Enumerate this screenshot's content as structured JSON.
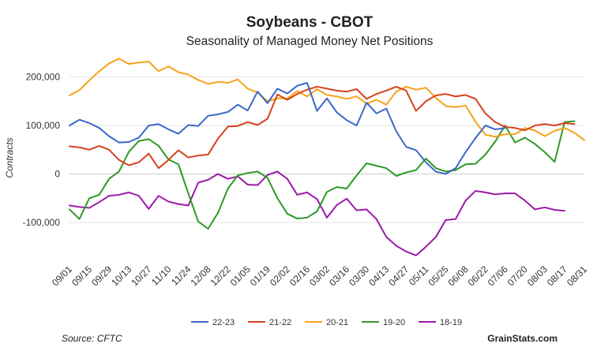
{
  "chart_data": {
    "type": "line",
    "title": "Soybeans - CBOT",
    "subtitle": "Seasonality of Managed Money Net Positions",
    "ylabel": "Contracts",
    "xlabel": "",
    "ylim": [
      -170000,
      245000
    ],
    "yticks": [
      -100000,
      0,
      100000,
      200000
    ],
    "ytick_labels": [
      "-100,000",
      "0",
      "100,000",
      "200,000"
    ],
    "grid": true,
    "legend_position": "bottom",
    "source": "Source: CFTC",
    "brand": "GrainStats.com",
    "x_tick_labels": [
      "09/01",
      "09/15",
      "09/29",
      "10/13",
      "10/27",
      "11/10",
      "11/24",
      "12/08",
      "12/22",
      "01/05",
      "01/19",
      "02/02",
      "02/16",
      "03/02",
      "03/16",
      "03/30",
      "04/13",
      "04/27",
      "05/11",
      "05/25",
      "06/08",
      "06/22",
      "07/06",
      "07/20",
      "08/03",
      "08/17",
      "08/31"
    ],
    "x_points": 53,
    "series": [
      {
        "name": "22-23",
        "color": "#3a68c9",
        "values": [
          100000,
          112000,
          105000,
          95000,
          78000,
          65000,
          66000,
          75000,
          100000,
          103000,
          92000,
          83000,
          101000,
          99000,
          120000,
          123000,
          128000,
          143000,
          131000,
          170000,
          146000,
          176000,
          166000,
          182000,
          188000,
          130000,
          156000,
          127000,
          111000,
          100000,
          147000,
          125000,
          135000,
          88000,
          56000,
          49000,
          24000,
          5000,
          0,
          12000,
          45000,
          74000,
          100000,
          92000,
          95000,
          null,
          null,
          null,
          null,
          null,
          null,
          null,
          null
        ]
      },
      {
        "name": "21-22",
        "color": "#d9411e",
        "values": [
          57000,
          55000,
          50000,
          58000,
          50000,
          29000,
          18000,
          24000,
          42000,
          12000,
          29000,
          49000,
          34000,
          38000,
          40000,
          73000,
          98000,
          99000,
          107000,
          101000,
          114000,
          164000,
          153000,
          165000,
          174000,
          180000,
          176000,
          172000,
          170000,
          175000,
          155000,
          165000,
          172000,
          180000,
          172000,
          130000,
          150000,
          162000,
          165000,
          160000,
          163000,
          155000,
          125000,
          107000,
          97000,
          95000,
          90000,
          100000,
          103000,
          100000,
          105000,
          103000,
          null
        ]
      },
      {
        "name": "20-21",
        "color": "#f5a31a",
        "values": [
          162000,
          173000,
          193000,
          212000,
          228000,
          238000,
          227000,
          230000,
          232000,
          212000,
          222000,
          210000,
          205000,
          194000,
          186000,
          190000,
          188000,
          195000,
          176000,
          168000,
          150000,
          156000,
          156000,
          171000,
          160000,
          175000,
          163000,
          160000,
          155000,
          160000,
          145000,
          153000,
          143000,
          170000,
          180000,
          174000,
          178000,
          157000,
          140000,
          138000,
          141000,
          108000,
          81000,
          77000,
          82000,
          82000,
          95000,
          90000,
          78000,
          89000,
          95000,
          85000,
          70000
        ]
      },
      {
        "name": "19-20",
        "color": "#2e9a26",
        "values": [
          -73000,
          -93000,
          -50000,
          -43000,
          -10000,
          5000,
          46000,
          68000,
          72000,
          58000,
          30000,
          20000,
          -40000,
          -98000,
          -113000,
          -80000,
          -30000,
          -3000,
          2000,
          5000,
          -8000,
          -50000,
          -82000,
          -92000,
          -90000,
          -77000,
          -37000,
          -27000,
          -30000,
          -3000,
          22000,
          17000,
          12000,
          -4000,
          3000,
          8000,
          32000,
          12000,
          5000,
          8000,
          20000,
          21000,
          40000,
          67000,
          100000,
          65000,
          75000,
          62000,
          45000,
          25000,
          107000,
          109000,
          null
        ]
      },
      {
        "name": "18-19",
        "color": "#9b1aa8",
        "values": [
          -65000,
          -68000,
          -70000,
          -58000,
          -45000,
          -43000,
          -38000,
          -45000,
          -72000,
          -45000,
          -57000,
          -62000,
          -65000,
          -18000,
          -12000,
          0,
          -10000,
          -5000,
          -22000,
          -23000,
          -2000,
          5000,
          -10000,
          -43000,
          -38000,
          -52000,
          -90000,
          -64000,
          -51000,
          -75000,
          -73000,
          -93000,
          -130000,
          -148000,
          -160000,
          -168000,
          -150000,
          -130000,
          -95000,
          -93000,
          -55000,
          -35000,
          -38000,
          -42000,
          -40000,
          -40000,
          -55000,
          -73000,
          -69000,
          -74000,
          -76000,
          null,
          null
        ]
      }
    ]
  }
}
